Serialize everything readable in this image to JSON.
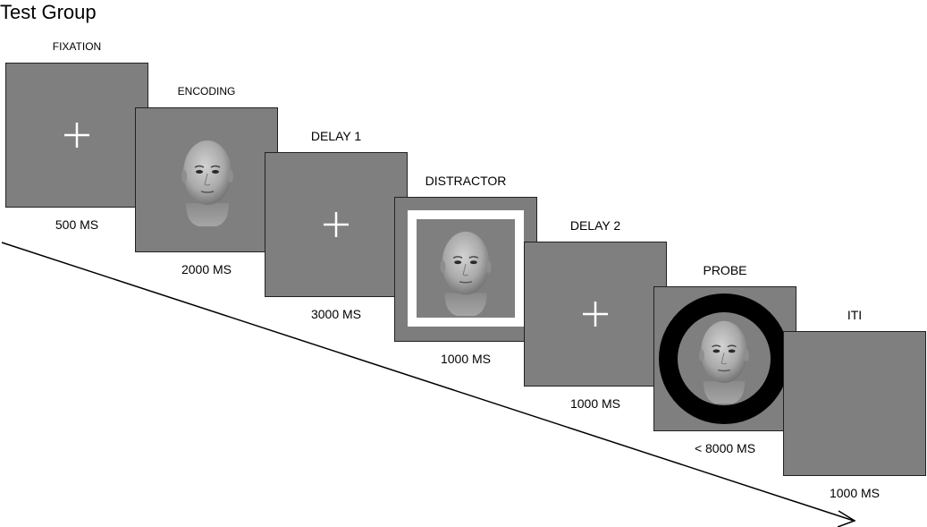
{
  "title": "Test Group",
  "stages": [
    {
      "name": "FIXATION",
      "duration": "500 MS",
      "content": "cross"
    },
    {
      "name": "ENCODING",
      "duration": "2000 MS",
      "content": "face"
    },
    {
      "name": "DELAY 1",
      "duration": "3000 MS",
      "content": "cross"
    },
    {
      "name": "DISTRACTOR",
      "duration": "1000 MS",
      "content": "framed-face"
    },
    {
      "name": "DELAY 2",
      "duration": "1000 MS",
      "content": "cross"
    },
    {
      "name": "PROBE",
      "duration": "< 8000 MS",
      "content": "ringed-face"
    },
    {
      "name": "ITI",
      "duration": "1000 MS",
      "content": "blank"
    }
  ],
  "colors": {
    "panel": "#7f7f7f",
    "cross": "#ffffff",
    "ring": "#000000"
  }
}
